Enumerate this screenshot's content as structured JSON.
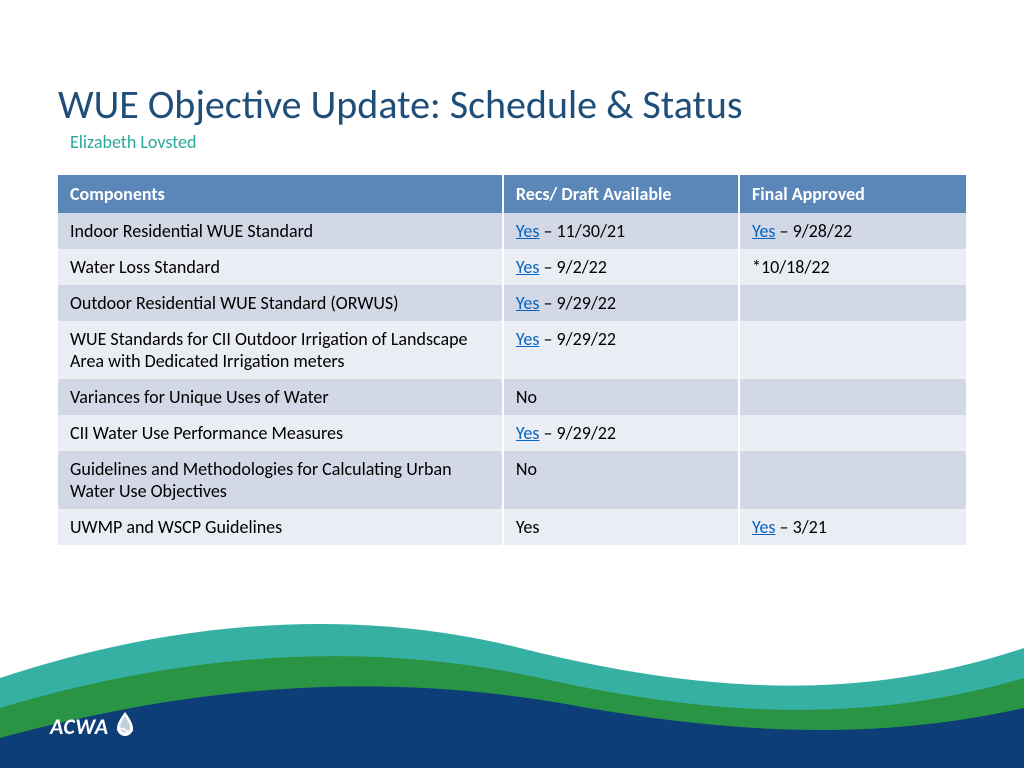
{
  "title": "WUE Objective Update: Schedule & Status",
  "subtitle": "Elizabeth Lovsted",
  "colors": {
    "title": "#1f4e79",
    "subtitle": "#2aa89a",
    "header_bg": "#5b87b8",
    "header_fg": "#ffffff",
    "row_odd": "#d2d8e6",
    "row_even": "#eaedf4",
    "link": "#0563c1",
    "wave_teal": "#37b0a4",
    "wave_green": "#2a9445",
    "wave_navy": "#0e3e78"
  },
  "table": {
    "columns": [
      "Components",
      "Recs/ Draft Available",
      "Final Approved"
    ],
    "rows": [
      {
        "component": "Indoor Residential WUE Standard",
        "recs": {
          "link": "Yes",
          "rest": " – 11/30/21"
        },
        "final": {
          "link": "Yes",
          "rest": " – 9/28/22"
        }
      },
      {
        "component": "Water Loss Standard",
        "recs": {
          "link": "Yes",
          "rest": " – 9/2/22"
        },
        "final": {
          "plain": "*10/18/22"
        }
      },
      {
        "component": "Outdoor Residential WUE Standard (ORWUS)",
        "recs": {
          "link": "Yes",
          "rest": " – 9/29/22"
        },
        "final": {
          "plain": ""
        }
      },
      {
        "component": "WUE Standards for CII Outdoor Irrigation of Landscape Area with Dedicated Irrigation meters",
        "recs": {
          "link": "Yes",
          "rest": " – 9/29/22"
        },
        "final": {
          "plain": ""
        }
      },
      {
        "component": "Variances for Unique Uses of Water",
        "recs": {
          "plain": "No"
        },
        "final": {
          "plain": ""
        }
      },
      {
        "component": "CII Water Use Performance Measures",
        "recs": {
          "link": "Yes",
          "rest": " – 9/29/22"
        },
        "final": {
          "plain": ""
        }
      },
      {
        "component": "Guidelines and Methodologies for Calculating Urban Water Use Objectives",
        "recs": {
          "plain": "No"
        },
        "final": {
          "plain": ""
        }
      },
      {
        "component": "UWMP and WSCP Guidelines",
        "recs": {
          "plain": "Yes"
        },
        "final": {
          "link": "Yes",
          "rest": " – 3/21"
        }
      }
    ]
  },
  "logo_text": "ACWA"
}
